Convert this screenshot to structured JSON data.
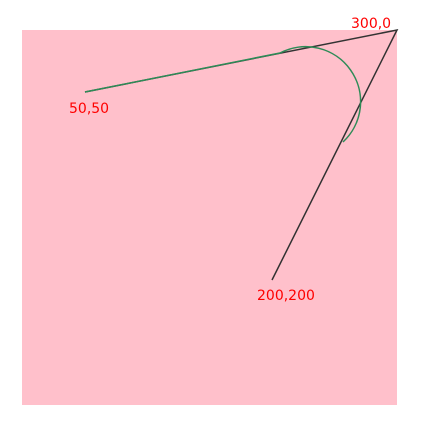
{
  "colors": {
    "page_background": "#ffffff",
    "canvas_background": "#ffc0cb",
    "polyline_stroke": "#333333",
    "arc_stroke": "#2e8b57",
    "label_color": "#ff0000"
  },
  "diagram": {
    "labels": {
      "start": "50,50",
      "corner": "300,0",
      "end": "200,200"
    }
  }
}
